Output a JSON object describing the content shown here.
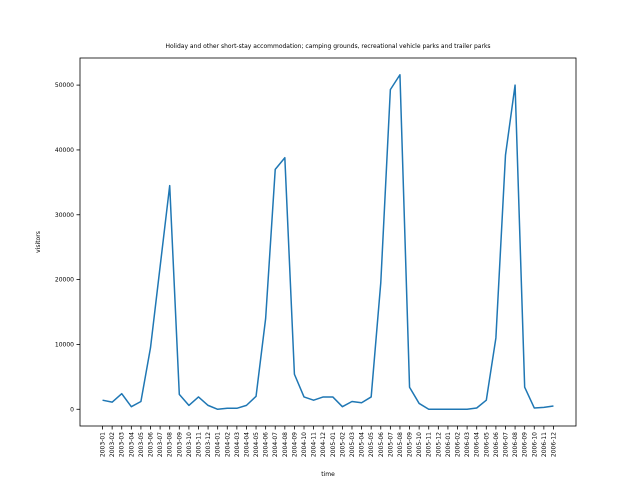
{
  "chart_data": {
    "type": "line",
    "title": "Holiday and other short-stay accommodation; camping grounds, recreational vehicle parks and trailer parks",
    "x_label": "time",
    "y_label": "visitors",
    "categories": [
      "2003-01",
      "2003-02",
      "2003-03",
      "2003-04",
      "2003-05",
      "2003-06",
      "2003-07",
      "2003-08",
      "2003-09",
      "2003-10",
      "2003-11",
      "2003-12",
      "2004-01",
      "2004-02",
      "2004-03",
      "2004-04",
      "2004-05",
      "2004-06",
      "2004-07",
      "2004-08",
      "2004-09",
      "2004-10",
      "2004-11",
      "2004-12",
      "2005-01",
      "2005-02",
      "2005-03",
      "2005-04",
      "2005-05",
      "2005-06",
      "2005-07",
      "2005-08",
      "2005-09",
      "2005-10",
      "2005-11",
      "2005-12",
      "2006-01",
      "2006-02",
      "2006-03",
      "2006-04",
      "2006-05",
      "2006-06",
      "2006-07",
      "2006-08",
      "2006-09",
      "2006-10",
      "2006-11",
      "2006-12"
    ],
    "series": [
      {
        "name": "visitors",
        "color": "#1f77b4",
        "values": [
          1400,
          1100,
          2400,
          400,
          1200,
          9500,
          22000,
          34500,
          2300,
          600,
          1900,
          600,
          0,
          150,
          150,
          600,
          2000,
          14000,
          37000,
          38800,
          5400,
          1900,
          1400,
          1900,
          1900,
          400,
          1200,
          1000,
          1900,
          19500,
          49300,
          51600,
          3400,
          900,
          0,
          0,
          0,
          0,
          0,
          200,
          1400,
          11000,
          39200,
          50000,
          3400,
          200,
          300,
          500
        ]
      }
    ],
    "ylim": [
      -2580,
      54180
    ],
    "yticks": [
      0,
      10000,
      20000,
      30000,
      40000,
      50000
    ]
  }
}
